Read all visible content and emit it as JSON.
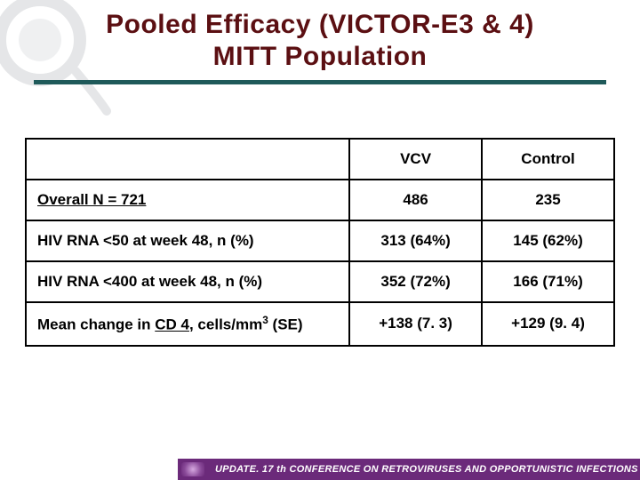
{
  "title": {
    "line1": "Pooled Efficacy (VICTOR-E3 & 4)",
    "line2": "MITT Population",
    "color": "#5b0f12",
    "rule_color": "#1f5a5a"
  },
  "table": {
    "columns": [
      "",
      "VCV",
      "Control"
    ],
    "rows": [
      {
        "label_html": "<span class=\"underline\">Overall N = 721</span>",
        "vcv": "486",
        "control": "235"
      },
      {
        "label_html": "HIV RNA &lt;50 at week 48, n (%)",
        "vcv": "313 (64%)",
        "control": "145 (62%)"
      },
      {
        "label_html": "HIV RNA &lt;400 at week 48, n (%)",
        "vcv": "352 (72%)",
        "control": "166 (71%)"
      },
      {
        "label_html": "Mean change in <span class=\"underline\">CD 4</span>, cells/mm<sup>3</sup> (SE)",
        "vcv": "+138 (7. 3)",
        "control": "+129 (9. 4)"
      }
    ],
    "border_color": "#000000",
    "cell_fontsize": 17
  },
  "footer": {
    "text": "UPDATE. 17 th CONFERENCE ON RETROVIRUSES AND OPPORTUNISTIC INFECTIONS",
    "bg": "#6b2a7a",
    "fg": "#ffffff"
  }
}
